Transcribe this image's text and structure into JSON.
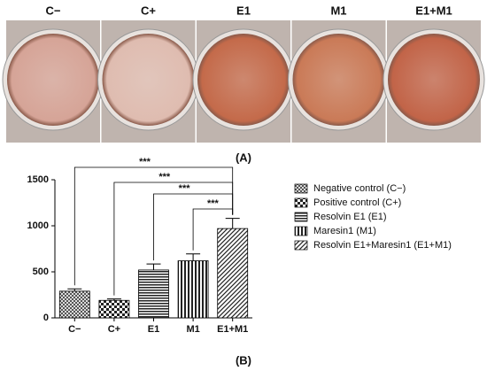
{
  "panel_a": {
    "label": "(A)",
    "well_colors": [
      "#d6a497",
      "#dfbcb0",
      "#c46a4a",
      "#ca7a57",
      "#c26448"
    ]
  },
  "chart_data": {
    "type": "bar",
    "panel_label": "(B)",
    "categories": [
      "C−",
      "C+",
      "E1",
      "M1",
      "E1+M1"
    ],
    "values": [
      290,
      190,
      520,
      620,
      970
    ],
    "errors": [
      25,
      15,
      65,
      75,
      110
    ],
    "legend": [
      "Negative control (C−)",
      "Positive control (C+)",
      "Resolvin E1 (E1)",
      "Maresin1 (M1)",
      "Resolvin E1+Maresin1 (E1+M1)"
    ],
    "patterns": [
      "crosshatch",
      "checker",
      "horizontal",
      "vertical",
      "diagonal"
    ],
    "annotations": [
      "***",
      "***",
      "***",
      "***"
    ],
    "ylim": [
      0,
      1500
    ],
    "yticks": [
      0,
      500,
      1000,
      1500
    ]
  }
}
